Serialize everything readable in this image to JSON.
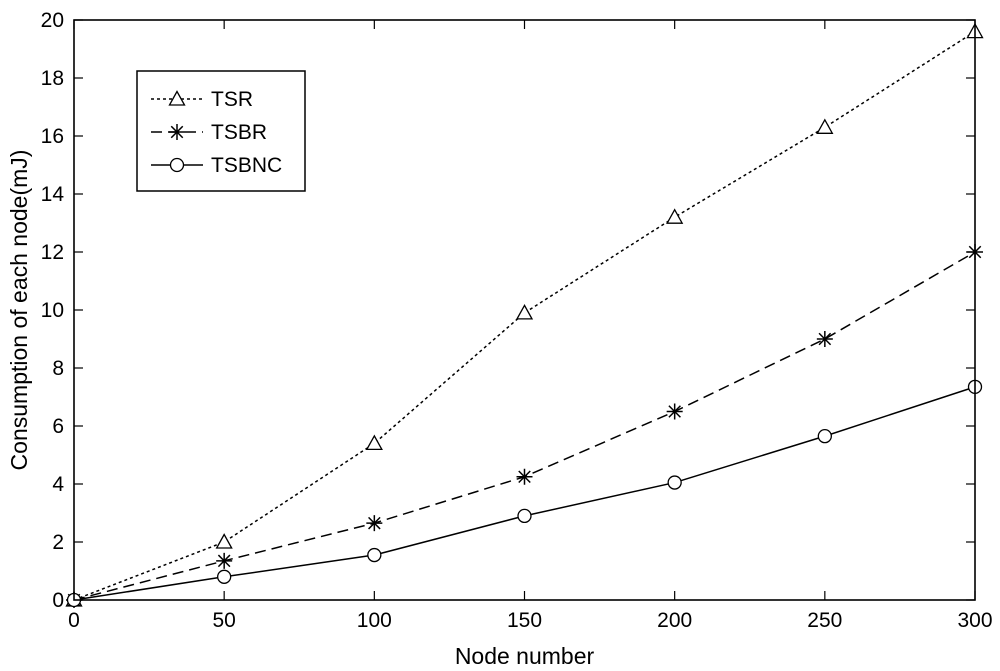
{
  "chart_data": {
    "type": "line",
    "xlabel": "Node number",
    "ylabel": "Consumption of each node(mJ)",
    "xlim": [
      0,
      300
    ],
    "ylim": [
      0,
      20
    ],
    "xticks": [
      0,
      50,
      100,
      150,
      200,
      250,
      300
    ],
    "yticks": [
      0,
      2,
      4,
      6,
      8,
      10,
      12,
      14,
      16,
      18,
      20
    ],
    "grid": false,
    "legend_position": "top-left",
    "x": [
      0,
      50,
      100,
      150,
      200,
      250,
      300
    ],
    "series": [
      {
        "name": "TSR",
        "marker": "triangle",
        "line_style": "dotted",
        "values": [
          0,
          2.0,
          5.4,
          9.9,
          13.2,
          16.3,
          19.6
        ]
      },
      {
        "name": "TSBR",
        "marker": "asterisk",
        "line_style": "dashed",
        "values": [
          0,
          1.35,
          2.65,
          4.25,
          6.5,
          9.0,
          12.0
        ]
      },
      {
        "name": "TSBNC",
        "marker": "circle",
        "line_style": "solid",
        "values": [
          0,
          0.8,
          1.55,
          2.9,
          4.05,
          5.65,
          7.35
        ]
      }
    ],
    "colors": {
      "line": "#000000",
      "marker_fill": "#ffffff"
    }
  }
}
